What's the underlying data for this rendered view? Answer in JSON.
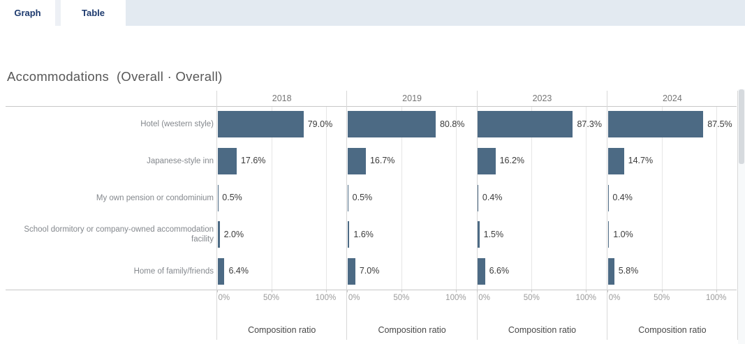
{
  "tabs": [
    {
      "label": "Graph",
      "active": true
    },
    {
      "label": "Table",
      "active": false
    }
  ],
  "title": "Accommodations  (Overall · Overall)",
  "colors": {
    "bar": "#4c6a84",
    "tab_text": "#1d3a6e",
    "tabbar_background": "#e3eaf1"
  },
  "chart_data": {
    "type": "bar",
    "orientation": "horizontal",
    "title": "Accommodations  (Overall · Overall)",
    "categories": [
      "Hotel (western style)",
      "Japanese-style inn",
      "My own pension or condominium",
      "School dormitory or company-owned accommodation facility",
      "Home of family/friends"
    ],
    "series": [
      {
        "name": "2018",
        "values": [
          79.0,
          17.6,
          0.5,
          2.0,
          6.4
        ]
      },
      {
        "name": "2019",
        "values": [
          80.8,
          16.7,
          0.5,
          1.6,
          7.0
        ]
      },
      {
        "name": "2023",
        "values": [
          87.3,
          16.2,
          0.4,
          1.5,
          6.6
        ]
      },
      {
        "name": "2024",
        "values": [
          87.5,
          14.7,
          0.4,
          1.0,
          5.8
        ]
      }
    ],
    "value_suffix": "%",
    "value_decimals": 1,
    "x_ticks": [
      "0%",
      "50%",
      "100%"
    ],
    "xlim": [
      0,
      100
    ],
    "xlabel": "Composition ratio",
    "grid": true,
    "legend": "none",
    "bar_color": "#4c6a84"
  }
}
